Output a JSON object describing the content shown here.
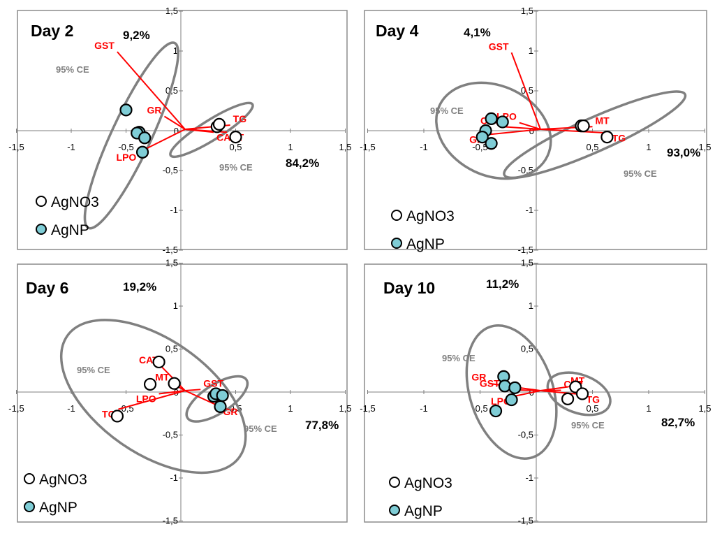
{
  "colors": {
    "frame": "#8c8c8c",
    "axis": "#7f7f7f",
    "ellipse": "#808080",
    "vector": "#ff0000",
    "vector_label": "#ff0000",
    "ellipse_label": "#808080",
    "agnp_fill": "#7fcdd6",
    "agno3_fill": "#ffffff",
    "marker_stroke": "#000000"
  },
  "legend": {
    "agno3": "AgNO3",
    "agnp": "AgNP"
  },
  "chart_data": [
    {
      "type": "scatter",
      "title": "Day 2",
      "x_variance": "84,2%",
      "y_variance": "9,2%",
      "xlim": [
        -1.5,
        1.5
      ],
      "ylim": [
        -1.5,
        1.5
      ],
      "x_ticks": [
        "-1,5",
        "-1",
        "-0,5",
        "0",
        "0,5",
        "1",
        "1,5"
      ],
      "y_ticks": [
        "1,5",
        "1",
        "0,5",
        "0",
        "-0,5",
        "-1",
        "-1,5"
      ],
      "series": [
        {
          "name": "AgNO3",
          "points": [
            [
              0.33,
              0.05
            ],
            [
              0.35,
              0.08
            ],
            [
              0.5,
              -0.08
            ]
          ]
        },
        {
          "name": "AgNP",
          "points": [
            [
              -0.5,
              0.26
            ],
            [
              -0.38,
              -0.02
            ],
            [
              -0.4,
              -0.03
            ],
            [
              -0.33,
              -0.09
            ],
            [
              -0.35,
              -0.27
            ]
          ]
        }
      ],
      "vectors": [
        {
          "label": "GST",
          "x": -0.58,
          "y": 0.99
        },
        {
          "label": "GR",
          "x": -0.15,
          "y": 0.18
        },
        {
          "label": "TG",
          "x": 0.45,
          "y": 0.07
        },
        {
          "label": "MT",
          "x": 0.42,
          "y": -0.02
        },
        {
          "label": "CAT",
          "x": 0.3,
          "y": -0.02
        },
        {
          "label": "LPO",
          "x": -0.38,
          "y": -0.27
        }
      ],
      "ellipses": [
        {
          "label": "95% CE",
          "cx": -0.45,
          "cy": -0.06,
          "rx": 0.93,
          "ry": 0.18,
          "angle_deg": -65
        },
        {
          "label": "95% CE",
          "cx": 0.28,
          "cy": 0.01,
          "rx": 0.44,
          "ry": 0.09,
          "angle_deg": -32
        }
      ]
    },
    {
      "type": "scatter",
      "title": "Day 4",
      "x_variance": "93,0%",
      "y_variance": "4,1%",
      "xlim": [
        -1.5,
        1.5
      ],
      "ylim": [
        -1.5,
        1.5
      ],
      "x_ticks": [
        "-1,5",
        "-1",
        "-0,5",
        "0",
        "0,5",
        "1",
        "1,5"
      ],
      "y_ticks": [
        "1,5",
        "1",
        "0,5",
        "0",
        "-0,5",
        "-1",
        "-1,5"
      ],
      "series": [
        {
          "name": "AgNO3",
          "points": [
            [
              0.4,
              0.06
            ],
            [
              0.42,
              0.06
            ],
            [
              0.63,
              -0.08
            ]
          ]
        },
        {
          "name": "AgNP",
          "points": [
            [
              -0.4,
              0.15
            ],
            [
              -0.3,
              0.11
            ],
            [
              -0.45,
              0.0
            ],
            [
              -0.48,
              -0.08
            ],
            [
              -0.4,
              -0.16
            ]
          ]
        }
      ],
      "vectors": [
        {
          "label": "GST",
          "x": -0.22,
          "y": 0.98
        },
        {
          "label": "LPO",
          "x": -0.15,
          "y": 0.1
        },
        {
          "label": "CAT",
          "x": -0.3,
          "y": 0.05
        },
        {
          "label": "GR",
          "x": -0.44,
          "y": -0.05
        },
        {
          "label": "MT",
          "x": 0.5,
          "y": 0.05
        },
        {
          "label": "TG",
          "x": 0.65,
          "y": -0.03
        }
      ],
      "ellipses": [
        {
          "label": "95% CE",
          "cx": -0.38,
          "cy": 0.0,
          "rx": 0.53,
          "ry": 0.4,
          "angle_deg": 25
        },
        {
          "label": "95% CE",
          "cx": 0.52,
          "cy": -0.05,
          "rx": 0.88,
          "ry": 0.15,
          "angle_deg": -24
        }
      ]
    },
    {
      "type": "scatter",
      "title": "Day 6",
      "x_variance": "77,8%",
      "y_variance": "19,2%",
      "xlim": [
        -1.5,
        1.5
      ],
      "ylim": [
        -1.5,
        1.5
      ],
      "x_ticks": [
        "-1,5",
        "-1",
        "-0,5",
        "0",
        "0,5",
        "1",
        "1,5"
      ],
      "y_ticks": [
        "1,5",
        "1",
        "0,5",
        "0",
        "-0,5",
        "-1",
        "-1,5"
      ],
      "series": [
        {
          "name": "AgNO3",
          "points": [
            [
              -0.2,
              0.35
            ],
            [
              -0.28,
              0.09
            ],
            [
              -0.06,
              0.1
            ],
            [
              -0.58,
              -0.28
            ]
          ]
        },
        {
          "name": "AgNP",
          "points": [
            [
              0.3,
              -0.05
            ],
            [
              0.32,
              -0.02
            ],
            [
              0.38,
              -0.04
            ],
            [
              0.36,
              -0.17
            ]
          ]
        }
      ],
      "vectors": [
        {
          "label": "CAT",
          "x": -0.18,
          "y": 0.3
        },
        {
          "label": "MT",
          "x": -0.08,
          "y": 0.1
        },
        {
          "label": "LPO",
          "x": -0.2,
          "y": -0.02
        },
        {
          "label": "TG",
          "x": -0.57,
          "y": -0.2
        },
        {
          "label": "GST",
          "x": 0.18,
          "y": 0.03
        },
        {
          "label": "GR",
          "x": 0.36,
          "y": -0.17
        }
      ],
      "ellipses": [
        {
          "label": "95% CE",
          "cx": -0.25,
          "cy": -0.05,
          "rx": 0.96,
          "ry": 0.52,
          "angle_deg": 35
        },
        {
          "label": "95% CE",
          "cx": 0.33,
          "cy": -0.08,
          "rx": 0.32,
          "ry": 0.13,
          "angle_deg": -33
        }
      ]
    },
    {
      "type": "scatter",
      "title": "Day 10",
      "x_variance": "82,7%",
      "y_variance": "11,2%",
      "xlim": [
        -1.5,
        1.5
      ],
      "ylim": [
        -1.5,
        1.5
      ],
      "x_ticks": [
        "-1,5",
        "-1",
        "-0,5",
        "0",
        "0,5",
        "1",
        "1,5"
      ],
      "y_ticks": [
        "1,5",
        "1",
        "0,5",
        "0",
        "-0,5",
        "-1",
        "-1,5"
      ],
      "series": [
        {
          "name": "AgNO3",
          "points": [
            [
              0.35,
              0.06
            ],
            [
              0.41,
              -0.02
            ],
            [
              0.28,
              -0.08
            ]
          ]
        },
        {
          "name": "AgNP",
          "points": [
            [
              -0.29,
              0.18
            ],
            [
              -0.28,
              0.07
            ],
            [
              -0.19,
              0.05
            ],
            [
              -0.22,
              -0.09
            ],
            [
              -0.36,
              -0.22
            ]
          ]
        }
      ],
      "vectors": [
        {
          "label": "GR",
          "x": -0.42,
          "y": 0.1
        },
        {
          "label": "GST",
          "x": -0.3,
          "y": 0.03
        },
        {
          "label": "LPO",
          "x": -0.2,
          "y": -0.05
        },
        {
          "label": "MT",
          "x": 0.28,
          "y": 0.06
        },
        {
          "label": "CAT",
          "x": 0.22,
          "y": 0.02
        },
        {
          "label": "TG",
          "x": 0.42,
          "y": -0.03
        }
      ],
      "ellipses": [
        {
          "label": "95% CE",
          "cx": -0.22,
          "cy": 0.0,
          "rx": 0.61,
          "ry": 0.37,
          "angle_deg": 72
        },
        {
          "label": "95% CE",
          "cx": 0.38,
          "cy": -0.02,
          "rx": 0.29,
          "ry": 0.17,
          "angle_deg": 20
        }
      ]
    }
  ]
}
